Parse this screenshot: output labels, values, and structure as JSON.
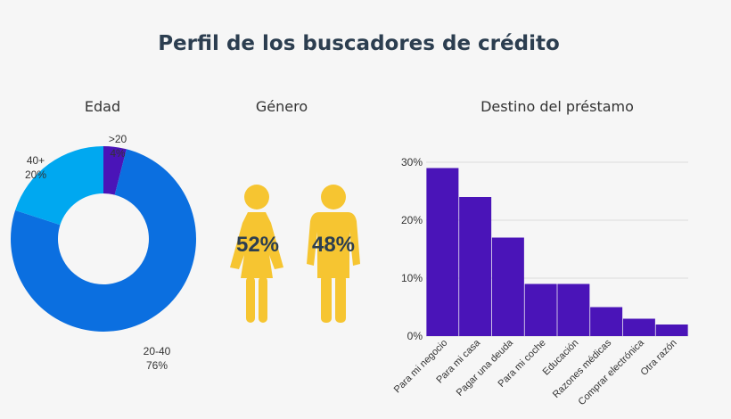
{
  "title": "Perfil de los buscadores de crédito",
  "colors": {
    "blue_dark": "#0b6fe0",
    "blue_light": "#00a8f0",
    "purple": "#4a14b8",
    "yellow": "#f6c531",
    "text_dark": "#2c3e50"
  },
  "chart_data": [
    {
      "type": "pie",
      "title": "Edad",
      "categories": [
        ">20",
        "20-40",
        "40+"
      ],
      "values": [
        4,
        76,
        20
      ],
      "value_labels": [
        "4%",
        "76%",
        "20%"
      ],
      "colors": [
        "#4a14b8",
        "#0b6fe0",
        "#00a8f0"
      ]
    },
    {
      "type": "pictogram",
      "title": "Género",
      "categories": [
        "Mujer",
        "Hombre"
      ],
      "values": [
        52,
        48
      ],
      "value_labels": [
        "52%",
        "48%"
      ],
      "icons": [
        "female-person-icon",
        "male-person-icon"
      ]
    },
    {
      "type": "bar",
      "title": "Destino del préstamo",
      "categories": [
        "Para mi negocio",
        "Para mi casa",
        "Pagar una deuda",
        "Para mi coche",
        "Educación",
        "Razones médicas",
        "Comprar electrónica",
        "Otra razón"
      ],
      "values": [
        29,
        24,
        17,
        9,
        9,
        5,
        3,
        2
      ],
      "ylim": [
        0,
        30
      ],
      "yticks": [
        "0%",
        "10%",
        "20%",
        "30%"
      ],
      "grid": true,
      "color": "#4a14b8"
    }
  ]
}
